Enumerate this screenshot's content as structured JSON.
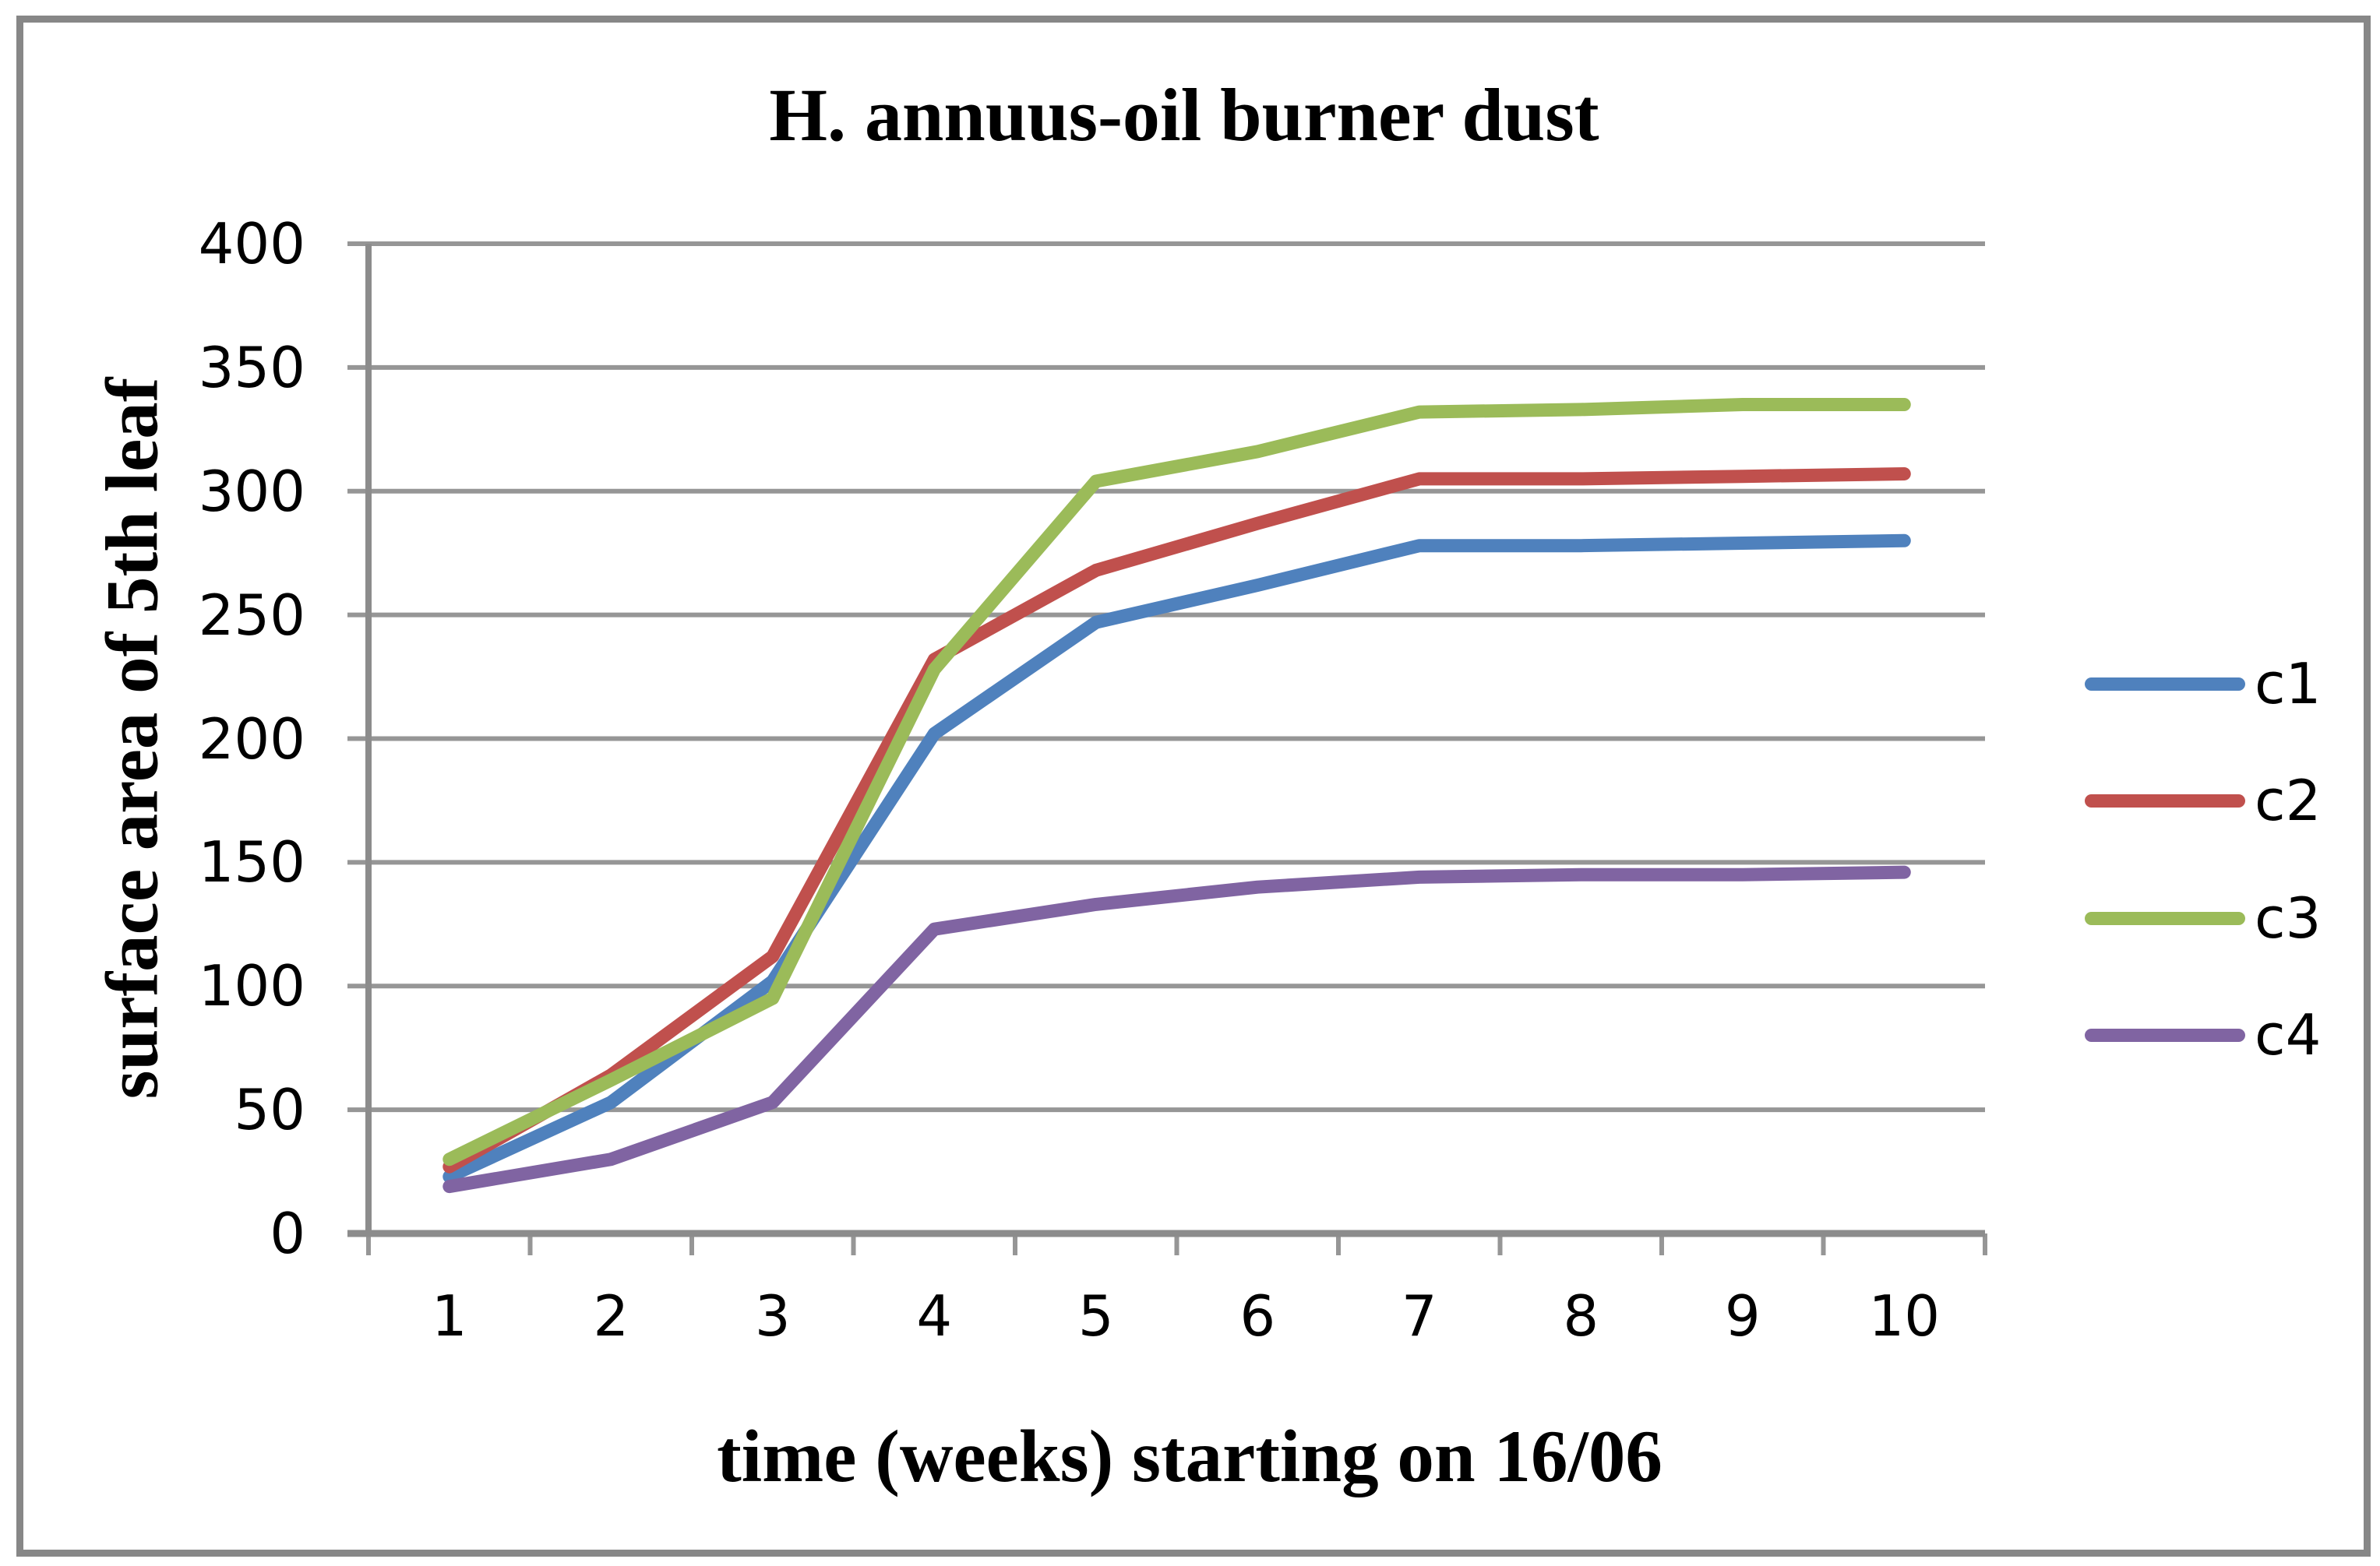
{
  "chart_data": {
    "type": "line",
    "title": "H. annuus-oil burner dust",
    "xlabel": "time (weeks) starting on 16/06",
    "ylabel": "surface area of 5th leaf",
    "categories": [
      1,
      2,
      3,
      4,
      5,
      6,
      7,
      8,
      9,
      10
    ],
    "ylim": [
      0,
      400
    ],
    "ytick_interval": 50,
    "yticks": [
      400,
      350,
      300,
      250,
      200,
      150,
      100,
      50,
      0
    ],
    "grid": true,
    "legend_position": "right",
    "series": [
      {
        "name": "c1",
        "color": "#4F81BD",
        "values": [
          23,
          53,
          102,
          202,
          247,
          262,
          278,
          278,
          279,
          280
        ]
      },
      {
        "name": "c2",
        "color": "#C0504D",
        "values": [
          27,
          64,
          112,
          232,
          268,
          287,
          305,
          305,
          306,
          307
        ]
      },
      {
        "name": "c3",
        "color": "#9BBB59",
        "values": [
          30,
          62,
          95,
          228,
          304,
          316,
          332,
          333,
          335,
          335
        ]
      },
      {
        "name": "c4",
        "color": "#8064A2",
        "values": [
          19,
          30,
          53,
          123,
          133,
          140,
          144,
          145,
          145,
          146
        ]
      }
    ],
    "colors": {
      "gridline": "#969696",
      "axis": "#8C8C8C",
      "border": "#878787",
      "text": "#000000",
      "background": "#FFFFFF"
    }
  }
}
